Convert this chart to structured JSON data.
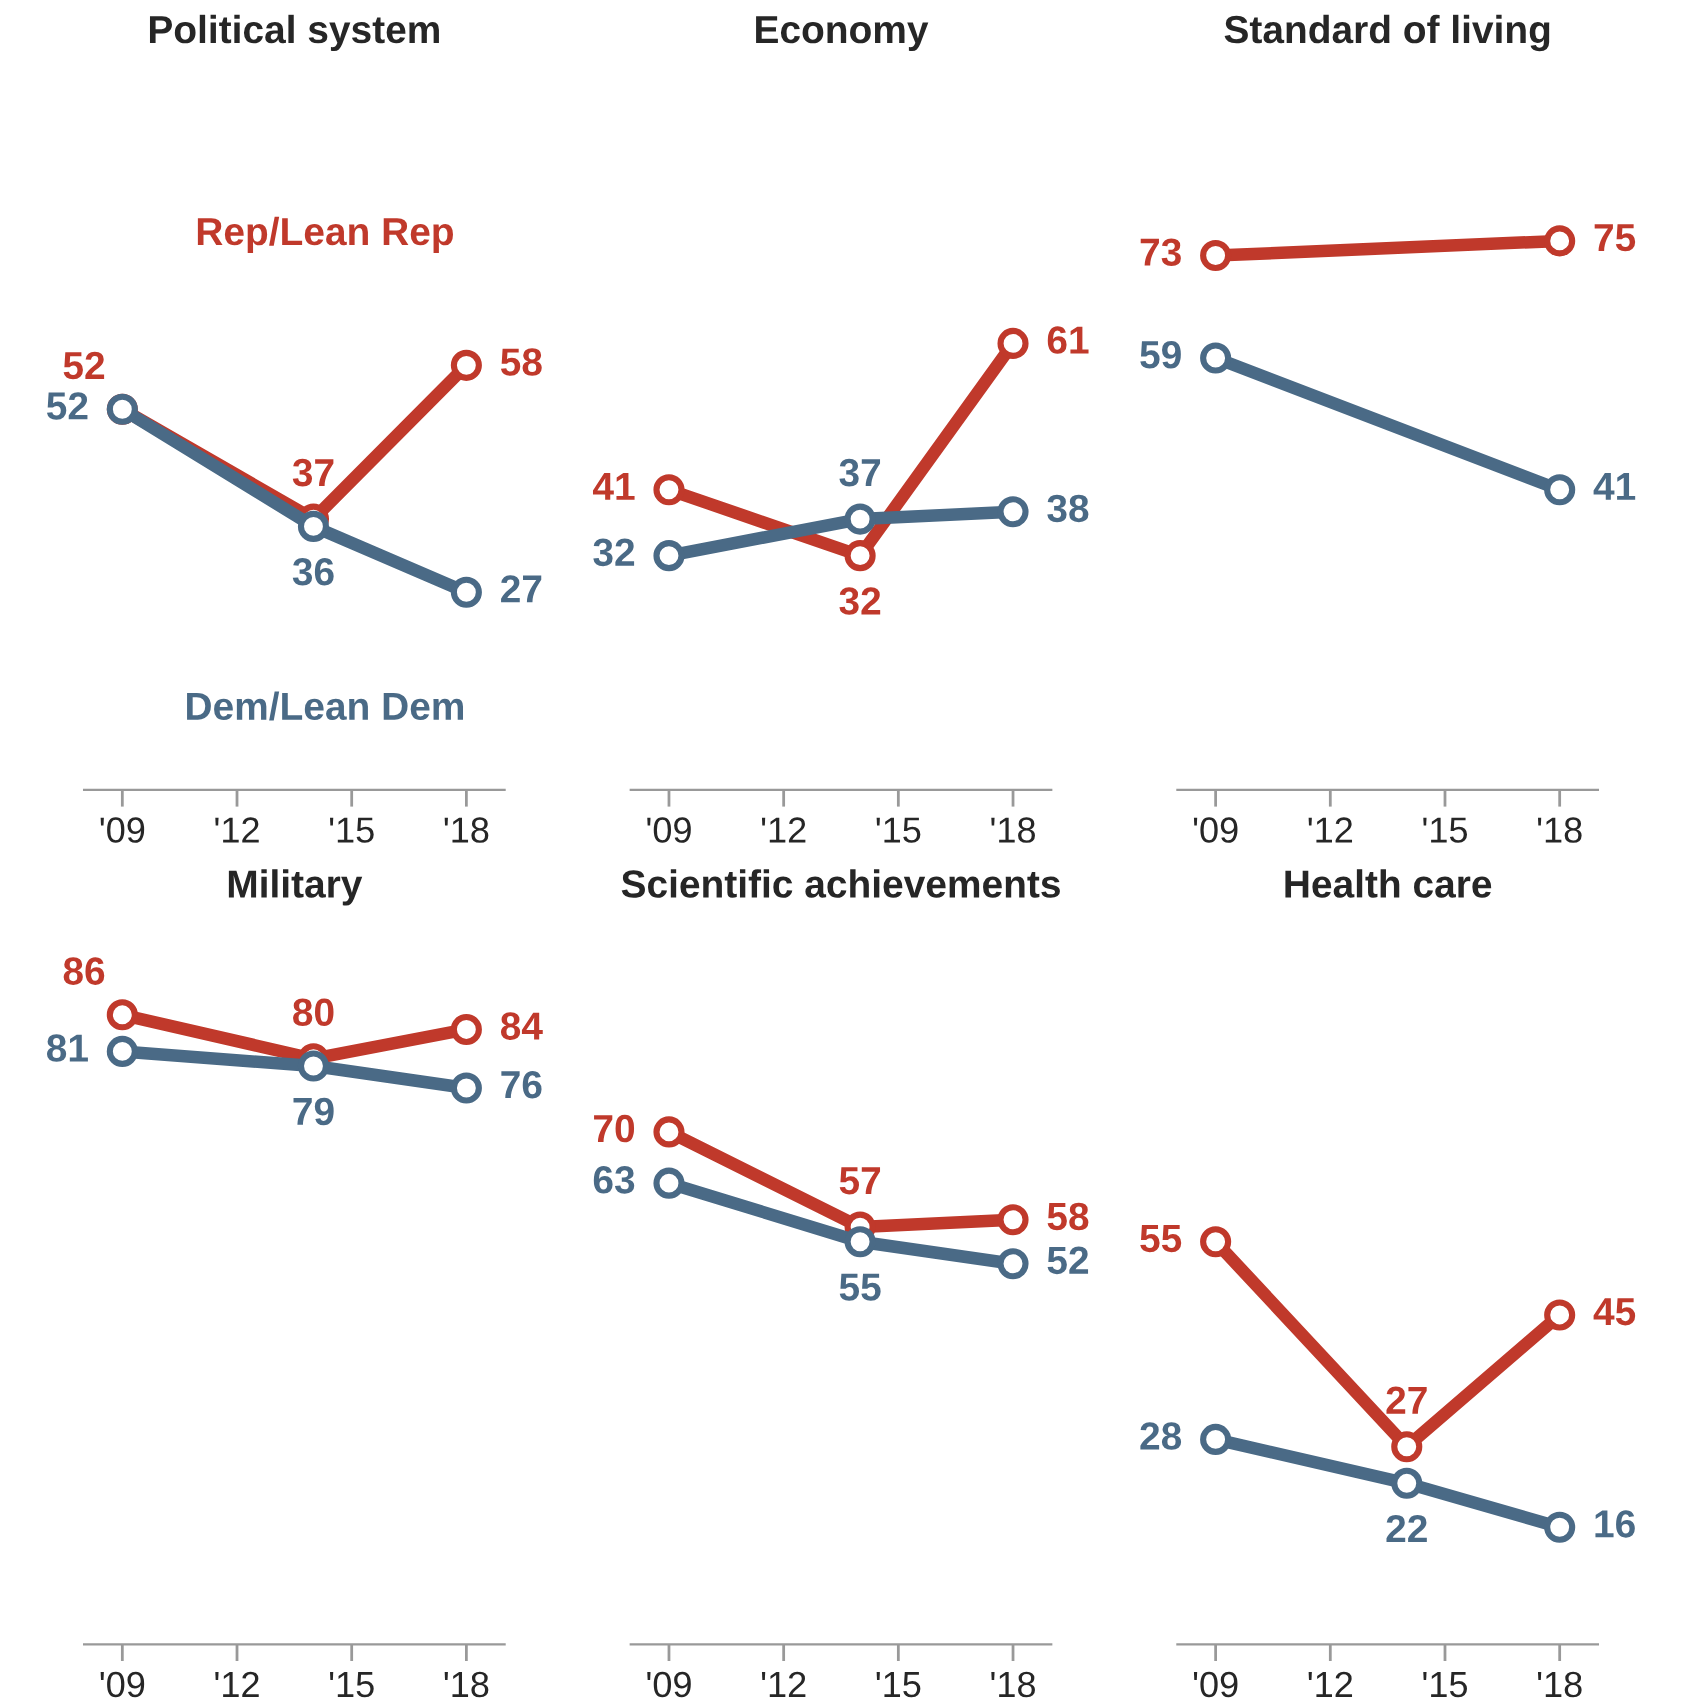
{
  "chart_data": [
    {
      "type": "line",
      "title": "Political system",
      "x": [
        2009,
        2014,
        2018
      ],
      "xlim": [
        2008,
        2019
      ],
      "xticks": [
        {
          "value": 2009,
          "label": "'09"
        },
        {
          "value": 2012,
          "label": "'12"
        },
        {
          "value": 2015,
          "label": "'15"
        },
        {
          "value": 2018,
          "label": "'18"
        }
      ],
      "tick_labels": "x",
      "data_labels": true,
      "marker": "circle",
      "grid": false,
      "series": [
        {
          "name": "Rep/Lean Rep",
          "color": "#c0392b",
          "values": [
            52,
            37,
            58
          ]
        },
        {
          "name": "Dem/Lean Dem",
          "color": "#4a6a86",
          "values": [
            52,
            36,
            27
          ]
        }
      ]
    },
    {
      "type": "line",
      "title": "Economy",
      "x": [
        2009,
        2014,
        2018
      ],
      "xlim": [
        2008,
        2019
      ],
      "xticks": [
        {
          "value": 2009,
          "label": "'09"
        },
        {
          "value": 2012,
          "label": "'12"
        },
        {
          "value": 2015,
          "label": "'15"
        },
        {
          "value": 2018,
          "label": "'18"
        }
      ],
      "tick_labels": "x",
      "data_labels": true,
      "marker": "circle",
      "grid": false,
      "series": [
        {
          "color": "#c0392b",
          "values": [
            41,
            32,
            61
          ]
        },
        {
          "color": "#4a6a86",
          "values": [
            32,
            37,
            38
          ]
        }
      ]
    },
    {
      "type": "line",
      "title": "Standard of living",
      "x": [
        2009,
        2018
      ],
      "xlim": [
        2008,
        2019
      ],
      "xticks": [
        {
          "value": 2009,
          "label": "'09"
        },
        {
          "value": 2012,
          "label": "'12"
        },
        {
          "value": 2015,
          "label": "'15"
        },
        {
          "value": 2018,
          "label": "'18"
        }
      ],
      "tick_labels": "x",
      "data_labels": true,
      "marker": "circle",
      "grid": false,
      "series": [
        {
          "color": "#c0392b",
          "values": [
            73,
            75
          ]
        },
        {
          "color": "#4a6a86",
          "values": [
            59,
            41
          ]
        }
      ]
    },
    {
      "type": "line",
      "title": "Military",
      "x": [
        2009,
        2014,
        2018
      ],
      "xlim": [
        2008,
        2019
      ],
      "xticks": [
        {
          "value": 2009,
          "label": "'09"
        },
        {
          "value": 2012,
          "label": "'12"
        },
        {
          "value": 2015,
          "label": "'15"
        },
        {
          "value": 2018,
          "label": "'18"
        }
      ],
      "tick_labels": "x",
      "data_labels": true,
      "marker": "circle",
      "grid": false,
      "series": [
        {
          "color": "#c0392b",
          "values": [
            86,
            80,
            84
          ]
        },
        {
          "color": "#4a6a86",
          "values": [
            81,
            79,
            76
          ]
        }
      ]
    },
    {
      "type": "line",
      "title": "Scientific achievements",
      "x": [
        2009,
        2014,
        2018
      ],
      "xlim": [
        2008,
        2019
      ],
      "xticks": [
        {
          "value": 2009,
          "label": "'09"
        },
        {
          "value": 2012,
          "label": "'12"
        },
        {
          "value": 2015,
          "label": "'15"
        },
        {
          "value": 2018,
          "label": "'18"
        }
      ],
      "tick_labels": "x",
      "data_labels": true,
      "marker": "circle",
      "grid": false,
      "series": [
        {
          "color": "#c0392b",
          "values": [
            70,
            57,
            58
          ]
        },
        {
          "color": "#4a6a86",
          "values": [
            63,
            55,
            52
          ]
        }
      ]
    },
    {
      "type": "line",
      "title": "Health care",
      "x": [
        2009,
        2014,
        2018
      ],
      "xlim": [
        2008,
        2019
      ],
      "xticks": [
        {
          "value": 2009,
          "label": "'09"
        },
        {
          "value": 2012,
          "label": "'12"
        },
        {
          "value": 2015,
          "label": "'15"
        },
        {
          "value": 2018,
          "label": "'18"
        }
      ],
      "tick_labels": "x",
      "data_labels": true,
      "marker": "circle",
      "grid": false,
      "series": [
        {
          "color": "#c0392b",
          "values": [
            55,
            27,
            45
          ]
        },
        {
          "color": "#4a6a86",
          "values": [
            28,
            22,
            16
          ]
        }
      ]
    }
  ]
}
